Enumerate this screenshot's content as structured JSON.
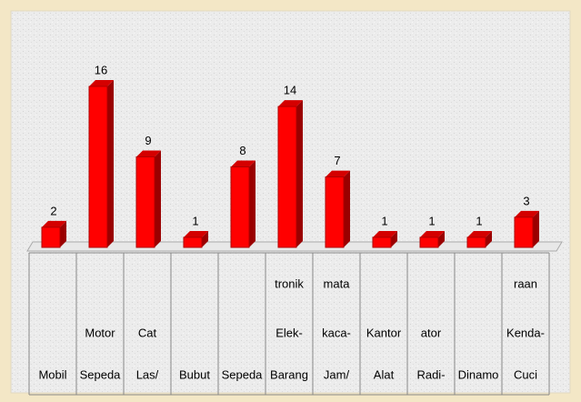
{
  "chart_data": {
    "type": "bar3d",
    "categories": [
      [
        "Mobil"
      ],
      [
        "Motor",
        "Sepeda"
      ],
      [
        "Cat",
        "Las/"
      ],
      [
        "Bubut"
      ],
      [
        "Sepeda"
      ],
      [
        "tronik",
        "Elek-",
        "Barang"
      ],
      [
        "mata",
        "kaca-",
        "Jam/"
      ],
      [
        "Kantor",
        "Alat"
      ],
      [
        "ator",
        "Radi-"
      ],
      [
        "Dinamo"
      ],
      [
        "raan",
        "Kenda-",
        "Cuci"
      ]
    ],
    "values": [
      2,
      16,
      9,
      1,
      8,
      14,
      7,
      1,
      1,
      1,
      3
    ],
    "color": "#ff0000"
  }
}
